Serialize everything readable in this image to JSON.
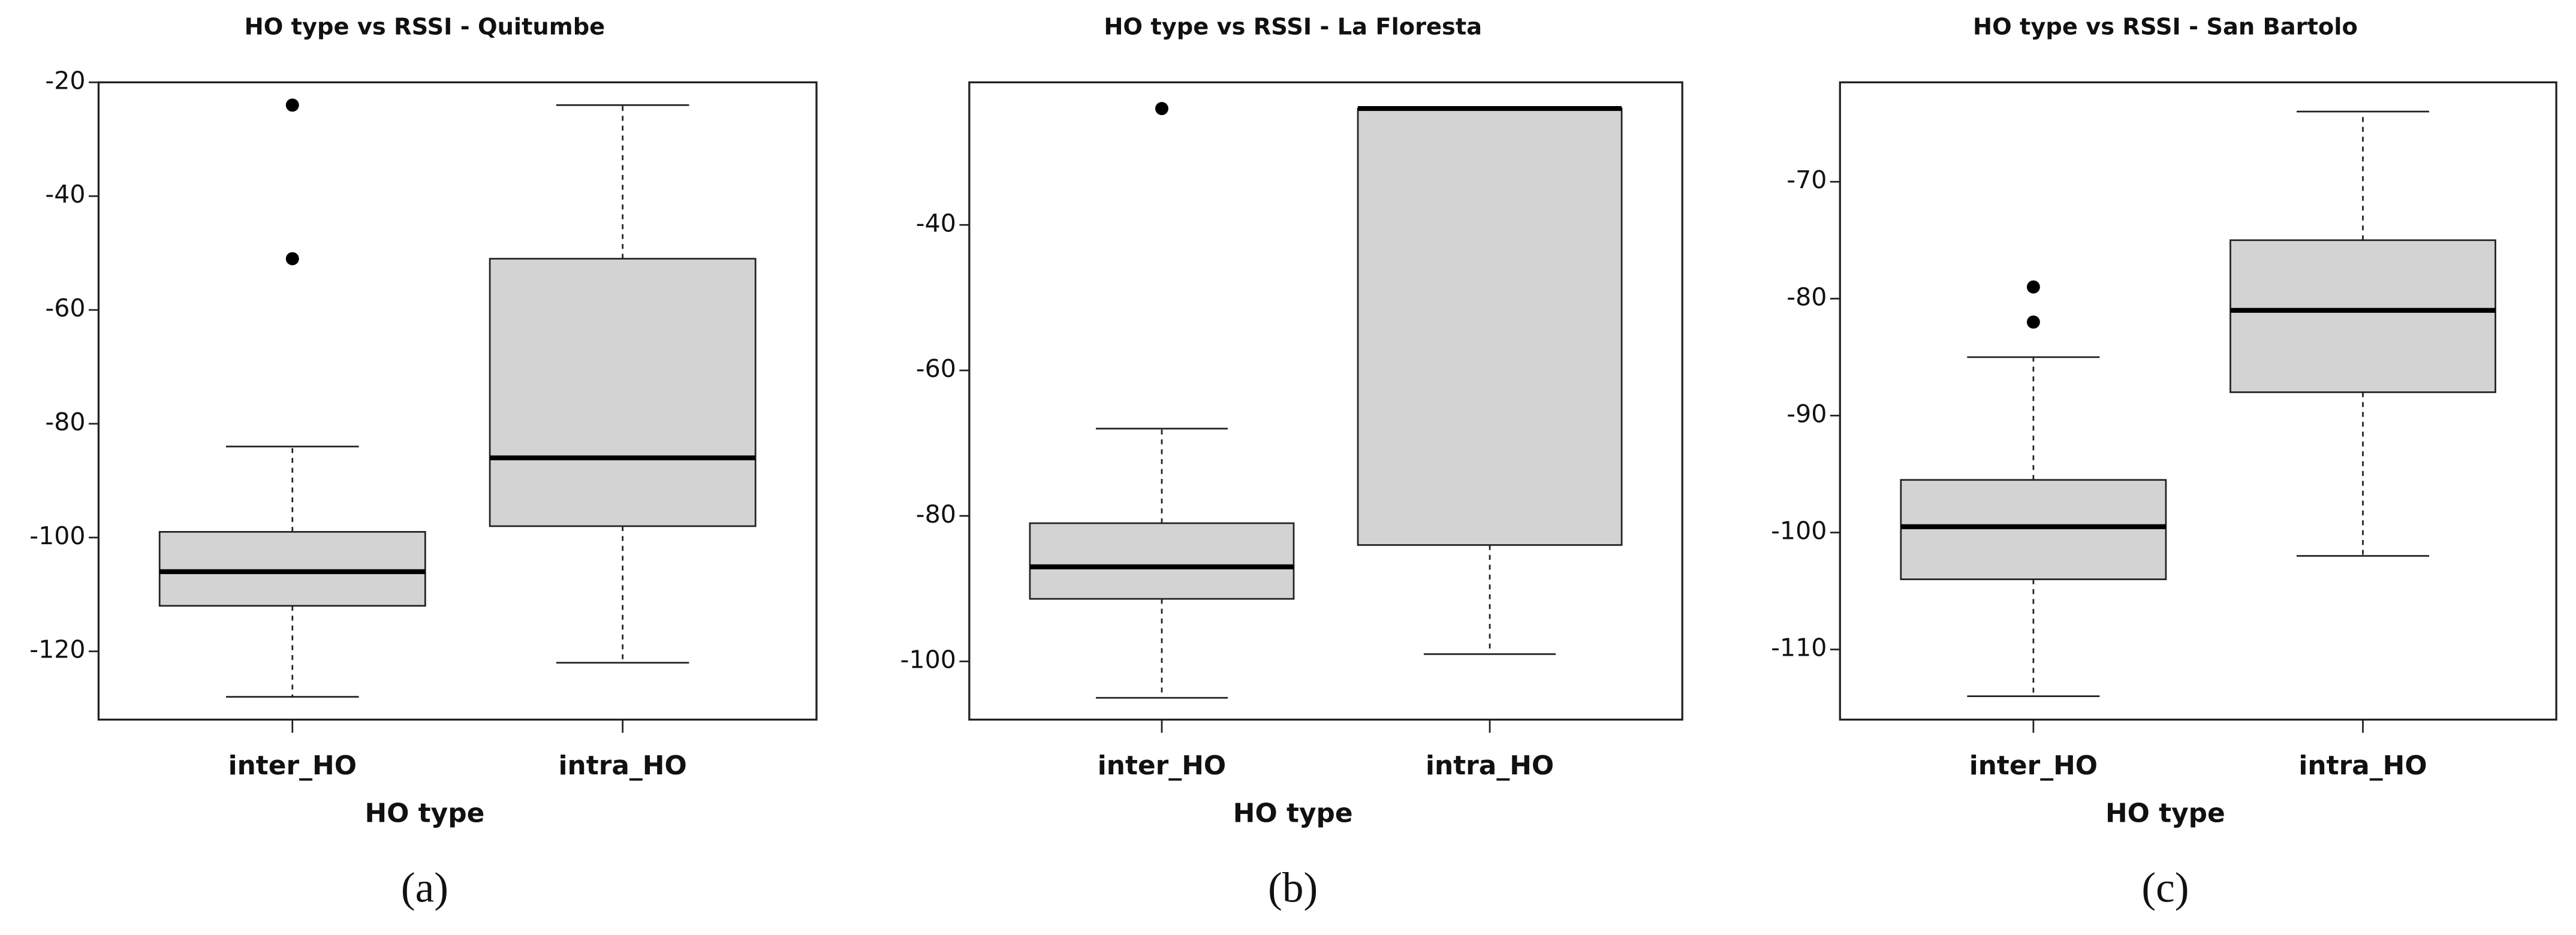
{
  "chart_data": [
    {
      "type": "box",
      "title": "HO type vs RSSI - Quitumbe",
      "xlabel": "HO type",
      "caption": "(a)",
      "categories": [
        "inter_HO",
        "intra_HO"
      ],
      "boxes": [
        {
          "min": -128,
          "q1": -112,
          "median": -106,
          "q3": -99,
          "max": -84,
          "outliers": [
            -24,
            -51
          ]
        },
        {
          "min": -122,
          "q1": -98,
          "median": -86,
          "q3": -51,
          "max": -24,
          "outliers": []
        }
      ],
      "color": "#d3d3d3",
      "ylim": [
        -132,
        -20
      ],
      "yticks": [
        -20,
        -40,
        -60,
        -80,
        -100,
        -120
      ]
    },
    {
      "type": "box",
      "title": "HO type vs RSSI - La Floresta",
      "xlabel": "HO type",
      "caption": "(b)",
      "categories": [
        "inter_HO",
        "intra_HO"
      ],
      "boxes": [
        {
          "min": -105,
          "q1": -91.4,
          "median": -87,
          "q3": -81,
          "max": -68,
          "outliers": [
            -24
          ]
        },
        {
          "min": -99,
          "q1": -84,
          "median": -24,
          "q3": -24,
          "max": -24,
          "outliers": []
        }
      ],
      "color": "#d3d3d3",
      "ylim": [
        -108,
        -20.4
      ],
      "yticks": [
        -40,
        -60,
        -80,
        -100
      ]
    },
    {
      "type": "box",
      "title": "HO type vs RSSI - San Bartolo",
      "xlabel": "HO type",
      "caption": "(c)",
      "categories": [
        "inter_HO",
        "intra_HO"
      ],
      "boxes": [
        {
          "min": -114,
          "q1": -104,
          "median": -99.5,
          "q3": -95.5,
          "max": -85,
          "outliers": [
            -79,
            -82
          ]
        },
        {
          "min": -102,
          "q1": -88,
          "median": -81,
          "q3": -75,
          "max": -64,
          "outliers": []
        }
      ],
      "color": "#d3d3d3",
      "ylim": [
        -116,
        -61.5
      ],
      "yticks": [
        -70,
        -80,
        -90,
        -100,
        -110
      ]
    }
  ]
}
